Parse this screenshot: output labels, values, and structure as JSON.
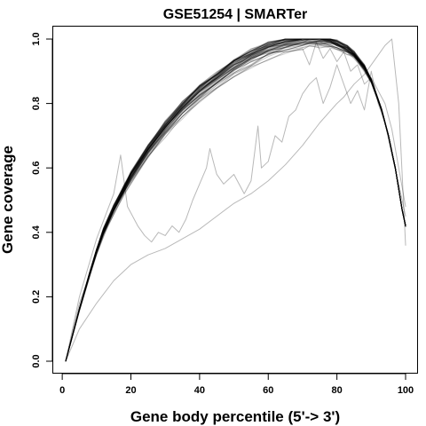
{
  "chart_data": {
    "type": "line",
    "title": "GSE51254 | SMARTer",
    "xlabel": "Gene body percentile (5'-> 3')",
    "ylabel": "Gene coverage",
    "xlim": [
      1,
      100
    ],
    "ylim": [
      0,
      1
    ],
    "x_ticks": [
      0,
      20,
      40,
      60,
      80,
      100
    ],
    "y_ticks": [
      0.0,
      0.2,
      0.4,
      0.6,
      0.8,
      1.0
    ],
    "x_tick_labels": [
      "0",
      "20",
      "40",
      "60",
      "80",
      "100"
    ],
    "y_tick_labels": [
      "0.0",
      "0.2",
      "0.4",
      "0.6",
      "0.8",
      "1.0"
    ],
    "grid": false,
    "legend": "none",
    "line_color": "#000000",
    "main_bundle": {
      "x": [
        1,
        3,
        5,
        8,
        10,
        12,
        15,
        18,
        20,
        25,
        30,
        35,
        40,
        45,
        50,
        55,
        60,
        65,
        70,
        72,
        75,
        78,
        80,
        83,
        85,
        88,
        90,
        93,
        95,
        97,
        99,
        100
      ],
      "y": [
        0.0,
        0.08,
        0.16,
        0.27,
        0.34,
        0.4,
        0.47,
        0.53,
        0.57,
        0.65,
        0.72,
        0.78,
        0.83,
        0.87,
        0.91,
        0.94,
        0.965,
        0.98,
        0.99,
        0.995,
        0.995,
        0.99,
        0.98,
        0.965,
        0.95,
        0.91,
        0.87,
        0.78,
        0.7,
        0.6,
        0.47,
        0.42
      ],
      "curve_count": 42,
      "spread": 0.03
    },
    "series": [
      {
        "x": [
          1,
          5,
          10,
          15,
          20,
          25,
          30,
          35,
          40,
          45,
          50,
          55,
          60,
          65,
          70,
          75,
          80,
          82,
          85,
          88,
          90,
          92,
          94,
          96,
          98,
          100
        ],
        "y": [
          0.0,
          0.1,
          0.18,
          0.25,
          0.3,
          0.33,
          0.35,
          0.38,
          0.41,
          0.45,
          0.49,
          0.52,
          0.56,
          0.61,
          0.67,
          0.74,
          0.8,
          0.82,
          0.86,
          0.89,
          0.92,
          0.95,
          0.98,
          1.0,
          0.8,
          0.36
        ]
      },
      {
        "x": [
          1,
          5,
          10,
          15,
          17,
          19,
          20,
          22,
          24,
          26,
          28,
          30,
          32,
          34,
          36,
          38,
          40,
          42,
          43,
          45,
          47,
          50,
          53,
          55,
          57,
          58,
          60,
          62,
          64,
          66,
          68,
          70,
          72,
          74,
          76,
          78,
          80,
          82,
          84,
          86,
          88,
          90,
          92,
          94,
          96,
          98,
          100
        ],
        "y": [
          0.0,
          0.2,
          0.38,
          0.52,
          0.64,
          0.48,
          0.46,
          0.42,
          0.39,
          0.37,
          0.4,
          0.39,
          0.42,
          0.4,
          0.44,
          0.5,
          0.55,
          0.6,
          0.66,
          0.58,
          0.55,
          0.58,
          0.52,
          0.56,
          0.73,
          0.6,
          0.62,
          0.7,
          0.68,
          0.76,
          0.78,
          0.83,
          0.86,
          0.88,
          0.8,
          0.85,
          0.92,
          0.86,
          0.8,
          0.84,
          0.78,
          0.9,
          0.8,
          0.74,
          0.64,
          0.55,
          0.45
        ]
      },
      {
        "x": [
          1,
          5,
          10,
          15,
          20,
          30,
          40,
          50,
          60,
          65,
          70,
          72,
          74,
          76,
          78,
          80,
          82,
          84,
          86,
          88,
          90,
          92,
          94,
          96,
          98,
          100
        ],
        "y": [
          0.0,
          0.18,
          0.33,
          0.47,
          0.57,
          0.72,
          0.84,
          0.92,
          0.96,
          0.96,
          0.97,
          0.92,
          0.99,
          0.94,
          0.97,
          0.93,
          0.96,
          0.9,
          0.92,
          0.86,
          0.88,
          0.84,
          0.8,
          0.72,
          0.6,
          0.48
        ]
      }
    ]
  }
}
